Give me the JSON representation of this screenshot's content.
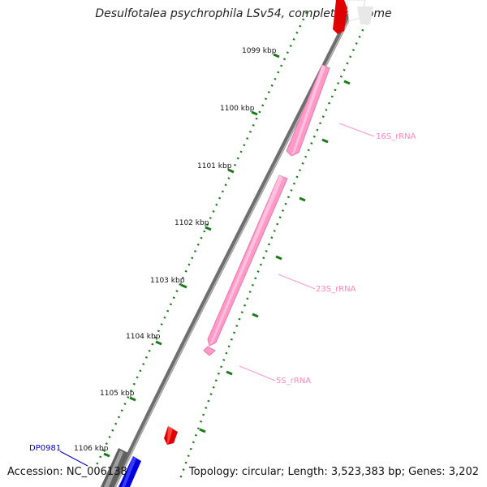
{
  "title": "Desulfotalea psychrophila LSv54, complete genome",
  "footer": {
    "accession": "Accession: NC_006138",
    "topology": "Topology: circular; Length: 3,523,383 bp; Genes: 3,202"
  },
  "ticks": [
    "1099 kbp",
    "1100 kbp",
    "1101 kbp",
    "1102 kbp",
    "1103 kbp",
    "1104 kbp",
    "1105 kbp",
    "1106 kbp"
  ],
  "features": [
    {
      "label": "16S_rRNA",
      "color": "#ff99c8"
    },
    {
      "label": "23S_rRNA",
      "color": "#ff99c8"
    },
    {
      "label": "5S_rRNA",
      "color": "#ff99c8"
    },
    {
      "label": "DP0981",
      "color": "#0000cc"
    }
  ],
  "colors": {
    "backbone": "#808080",
    "scale": "#1a7a1a",
    "rrna": "#ff99c8",
    "cds_forward": "#e00000",
    "cds_reverse": "#0000dd"
  }
}
